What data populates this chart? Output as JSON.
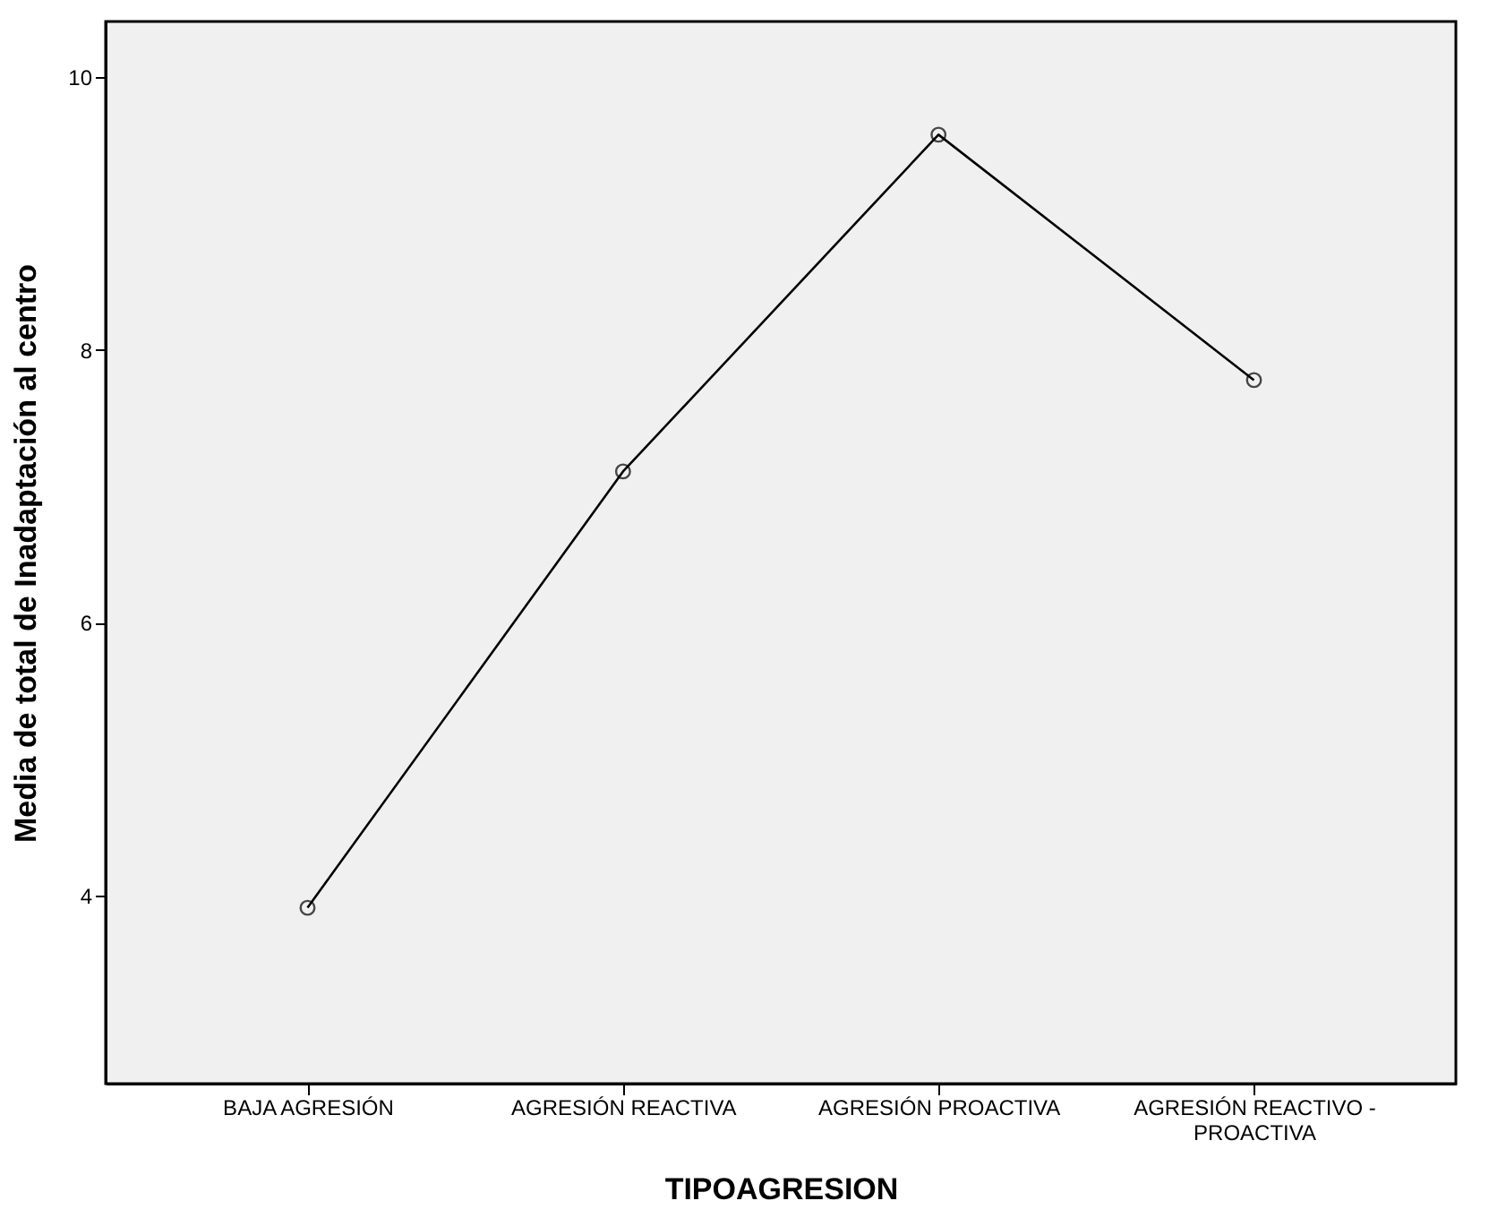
{
  "chart_data": {
    "type": "line",
    "xlabel": "TIPOAGRESION",
    "ylabel": "Media de total de Inadaptación al centro",
    "categories": [
      "BAJA AGRESIÓN",
      "AGRESIÓN REACTIVA",
      "AGRESIÓN PROACTIVA",
      "AGRESIÓN REACTIVO - PROACTIVA"
    ],
    "series": [
      {
        "color": "#000000",
        "values": [
          3.91,
          7.11,
          9.58,
          7.78
        ]
      }
    ],
    "ylim": [
      2.62,
      10.41
    ],
    "yticks": [
      4,
      6,
      8,
      10
    ],
    "grid": false,
    "marker": "circle",
    "line_style": "solid"
  }
}
